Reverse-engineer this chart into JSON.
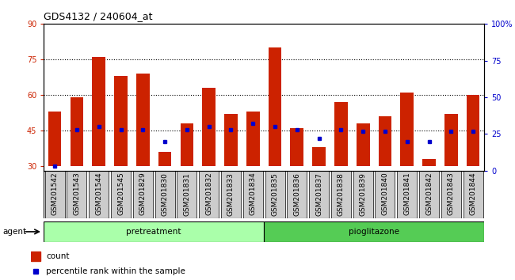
{
  "title": "GDS4132 / 240604_at",
  "samples": [
    "GSM201542",
    "GSM201543",
    "GSM201544",
    "GSM201545",
    "GSM201829",
    "GSM201830",
    "GSM201831",
    "GSM201832",
    "GSM201833",
    "GSM201834",
    "GSM201835",
    "GSM201836",
    "GSM201837",
    "GSM201838",
    "GSM201839",
    "GSM201840",
    "GSM201841",
    "GSM201842",
    "GSM201843",
    "GSM201844"
  ],
  "bar_tops": [
    53,
    59,
    76,
    68,
    69,
    36,
    48,
    63,
    52,
    53,
    80,
    46,
    38,
    57,
    48,
    51,
    61,
    33,
    52,
    60
  ],
  "percentile_ranks": [
    3,
    28,
    30,
    28,
    28,
    20,
    28,
    30,
    28,
    32,
    30,
    28,
    22,
    28,
    27,
    27,
    20,
    20,
    27,
    27
  ],
  "pretreatment_count": 10,
  "pretreatment_label": "pretreatment",
  "pioglitazone_label": "pioglitazone",
  "agent_label": "agent",
  "ylim_left": [
    28,
    90
  ],
  "ylim_right": [
    0,
    100
  ],
  "yticks_left": [
    30,
    45,
    60,
    75,
    90
  ],
  "yticks_right": [
    0,
    25,
    50,
    75,
    100
  ],
  "bar_color": "#cc2200",
  "dot_color": "#0000cc",
  "pretreatment_bg": "#aaffaa",
  "pioglitazone_bg": "#55cc55",
  "xticklabel_bg": "#cccccc",
  "grid_color": "#000000",
  "count_label": "count",
  "percentile_label": "percentile rank within the sample",
  "bar_width": 0.6,
  "title_fontsize": 9,
  "tick_fontsize": 7,
  "label_fontsize": 7.5
}
